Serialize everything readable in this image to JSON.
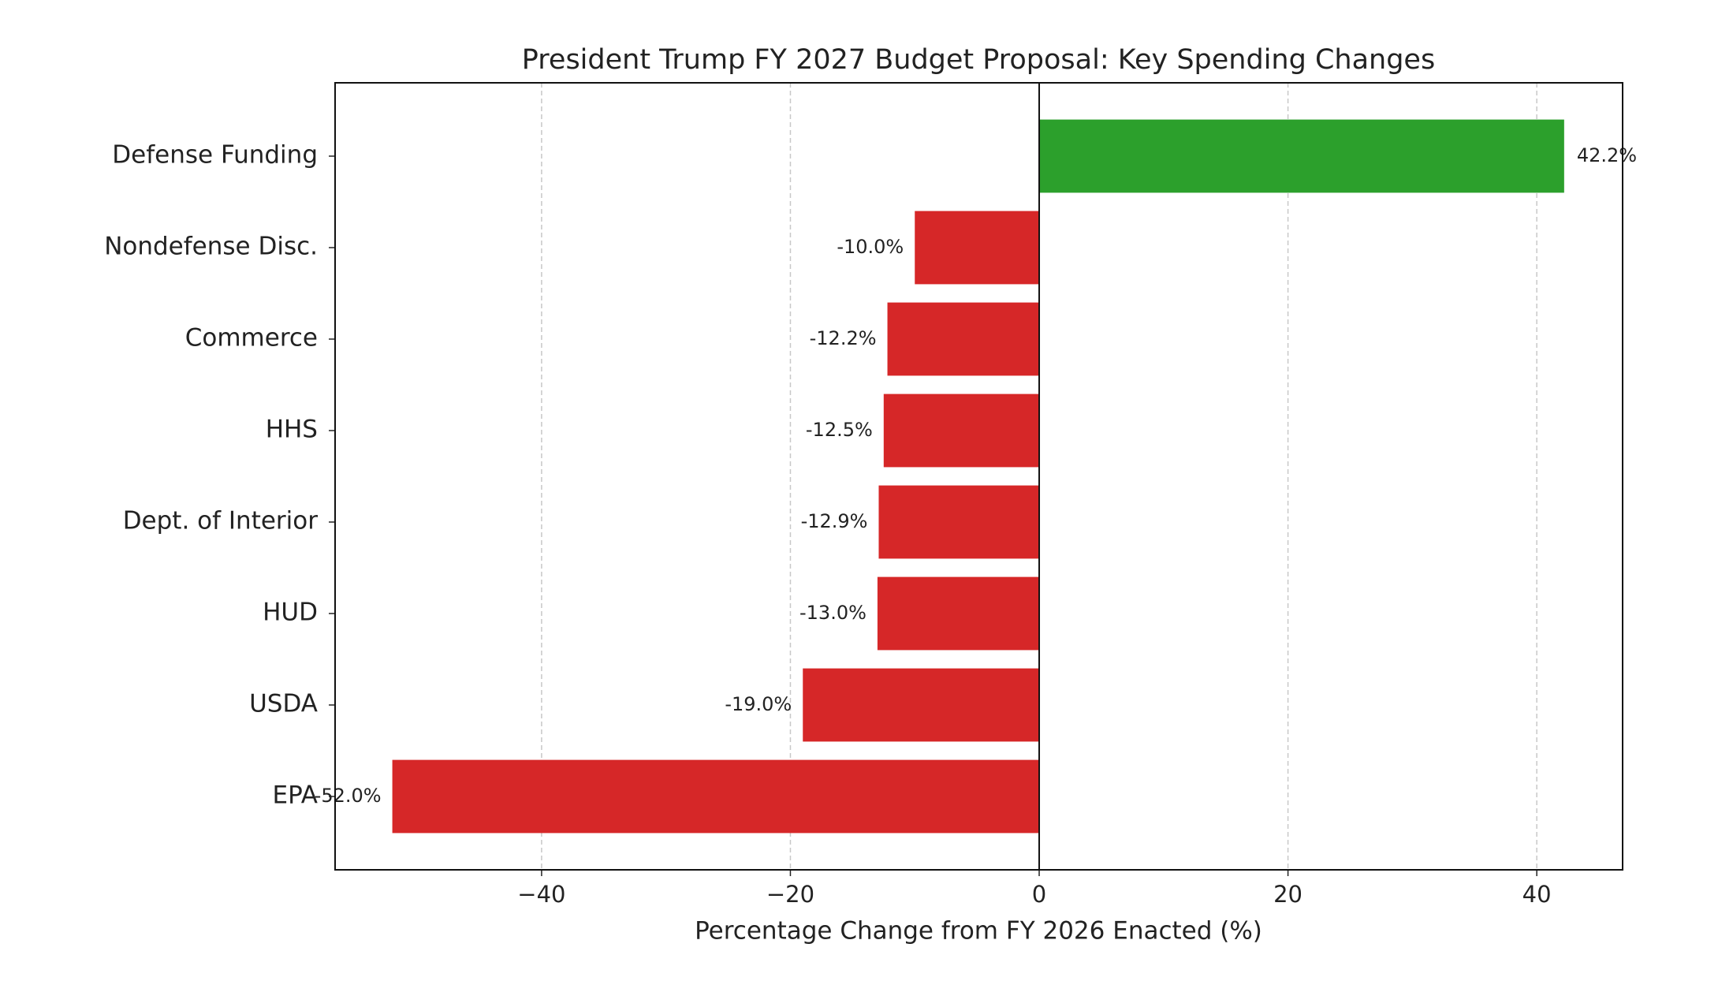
{
  "chart_data": {
    "type": "barh",
    "title": "President Trump FY 2027 Budget Proposal: Key Spending Changes",
    "x_label": "Percentage Change from FY 2026 Enacted (%)",
    "categories": [
      "Defense Funding",
      "Nondefense Disc.",
      "Commerce",
      "HHS",
      "Dept. of Interior",
      "HUD",
      "USDA",
      "EPA"
    ],
    "values": [
      42.2,
      -10.0,
      -12.2,
      -12.5,
      -12.9,
      -13.0,
      -19.0,
      -52.0
    ],
    "value_labels": [
      "42.2%",
      "-10.0%",
      "-12.2%",
      "-12.5%",
      "-12.9%",
      "-13.0%",
      "-19.0%",
      "-52.0%"
    ],
    "colors": [
      "#2ca02c",
      "#d62728",
      "#d62728",
      "#d62728",
      "#d62728",
      "#d62728",
      "#d62728",
      "#d62728"
    ],
    "xlim": [
      -56.6,
      46.9
    ],
    "xticks": [
      {
        "value": -40,
        "label": "−40"
      },
      {
        "value": -20,
        "label": "−20"
      },
      0,
      20,
      40
    ],
    "grid": true
  }
}
